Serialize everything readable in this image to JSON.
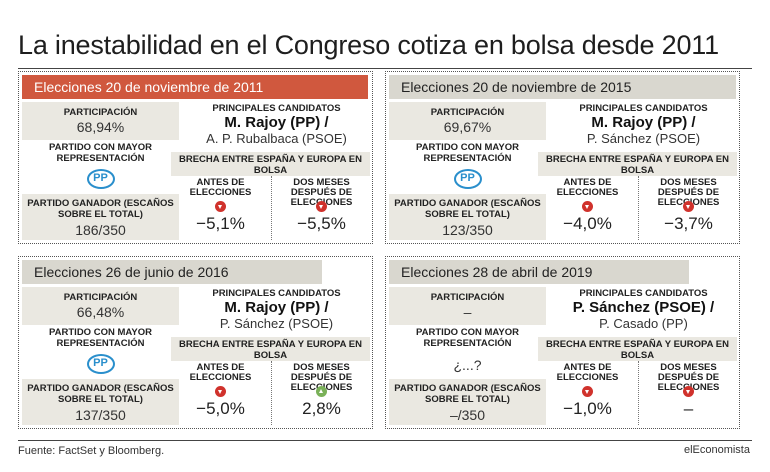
{
  "title": "La inestabilidad en el Congreso cotiza en bolsa desde 2011",
  "labels": {
    "participacion": "PARTICIPACIÓN",
    "mayor": "PARTIDO CON MAYOR REPRESENTACIÓN",
    "ganador": "PARTIDO GANADOR (ESCAÑOS SOBRE EL TOTAL)",
    "candidatos": "PRINCIPALES CANDIDATOS",
    "brecha": "BRECHA ENTRE ESPAÑA Y EUROPA EN BOLSA",
    "antes": "ANTES DE ELECCIONES",
    "despues": "DOS MESES DESPUÉS DE ELECCIONES"
  },
  "panels": [
    {
      "title": "Elecciones 20 de noviembre de 2011",
      "participacion": "68,94%",
      "mayor": "PP",
      "ganador": "186/350",
      "cand1": "M. Rajoy (PP) /",
      "cand2": "A. P. Rubalbaca (PSOE)",
      "antes": "−5,1%",
      "antes_dir": "down",
      "despues": "−5,5%",
      "despues_dir": "down"
    },
    {
      "title": "Elecciones 20 de noviembre de 2015",
      "participacion": "69,67%",
      "mayor": "PP",
      "ganador": "123/350",
      "cand1": "M. Rajoy (PP) /",
      "cand2": "P. Sánchez (PSOE)",
      "antes": "−4,0%",
      "antes_dir": "down",
      "despues": "−3,7%",
      "despues_dir": "down"
    },
    {
      "title": "Elecciones 26 de junio de 2016",
      "participacion": "66,48%",
      "mayor": "PP",
      "ganador": "137/350",
      "cand1": "M. Rajoy (PP) /",
      "cand2": "P. Sánchez (PSOE)",
      "antes": "−5,0%",
      "antes_dir": "down",
      "despues": "2,8%",
      "despues_dir": "up"
    },
    {
      "title": "Elecciones 28 de abril de 2019",
      "participacion": "–",
      "mayor_text": "¿...?",
      "ganador": "–/350",
      "cand1": "P. Sánchez (PSOE) /",
      "cand2": "P. Casado (PP)",
      "antes": "−1,0%",
      "antes_dir": "down",
      "despues": "–",
      "despues_dir": "down"
    }
  ],
  "footer": {
    "source": "Fuente: FactSet y Bloomberg.",
    "brand": "elEconomista"
  },
  "colors": {
    "accent_red": "#d0583e",
    "panel_gray": "#eae8e1",
    "pp_blue": "#2a8fcc",
    "arrow_down": "#d0322c",
    "arrow_up": "#7ab159"
  }
}
